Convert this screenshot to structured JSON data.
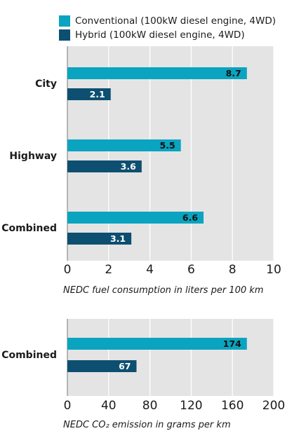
{
  "colors": {
    "conventional": "#0aa4c0",
    "hybrid": "#0d4f70",
    "plot_bg": "#e4e4e4",
    "grid": "#ffffff",
    "label_on_conventional": "#111111",
    "label_on_hybrid": "#ffffff"
  },
  "legend": [
    {
      "label": "Conventional (100kW diesel engine, 4WD)",
      "color": "#0aa4c0"
    },
    {
      "label": "Hybrid (100kW diesel engine, 4WD)",
      "color": "#0d4f70"
    }
  ],
  "chart_data": [
    {
      "type": "bar",
      "orientation": "horizontal",
      "categories": [
        "City",
        "Highway",
        "Combined"
      ],
      "series": [
        {
          "name": "Conventional (100kW diesel engine, 4WD)",
          "values": [
            8.7,
            5.5,
            6.6
          ]
        },
        {
          "name": "Hybrid (100kW diesel engine, 4WD)",
          "values": [
            2.1,
            3.6,
            3.1
          ]
        }
      ],
      "value_labels": [
        [
          "8.7",
          "5.5",
          "6.6"
        ],
        [
          "2.1",
          "3.6",
          "3.1"
        ]
      ],
      "xlabel": "NEDC fuel consumption in liters per 100 km",
      "xlim": [
        0,
        10
      ],
      "xticks": [
        "0",
        "2",
        "4",
        "6",
        "8",
        "10"
      ],
      "xtick_values": [
        0,
        2,
        4,
        6,
        8,
        10
      ],
      "grid": true
    },
    {
      "type": "bar",
      "orientation": "horizontal",
      "categories": [
        "Combined"
      ],
      "series": [
        {
          "name": "Conventional (100kW diesel engine, 4WD)",
          "values": [
            174
          ]
        },
        {
          "name": "Hybrid (100kW diesel engine, 4WD)",
          "values": [
            67
          ]
        }
      ],
      "value_labels": [
        [
          "174"
        ],
        [
          "67"
        ]
      ],
      "xlabel": "NEDC CO₂ emission in grams per km",
      "xlim": [
        0,
        200
      ],
      "xticks": [
        "0",
        "40",
        "80",
        "120",
        "160",
        "200"
      ],
      "xtick_values": [
        0,
        40,
        80,
        120,
        160,
        200
      ],
      "grid": true
    }
  ]
}
